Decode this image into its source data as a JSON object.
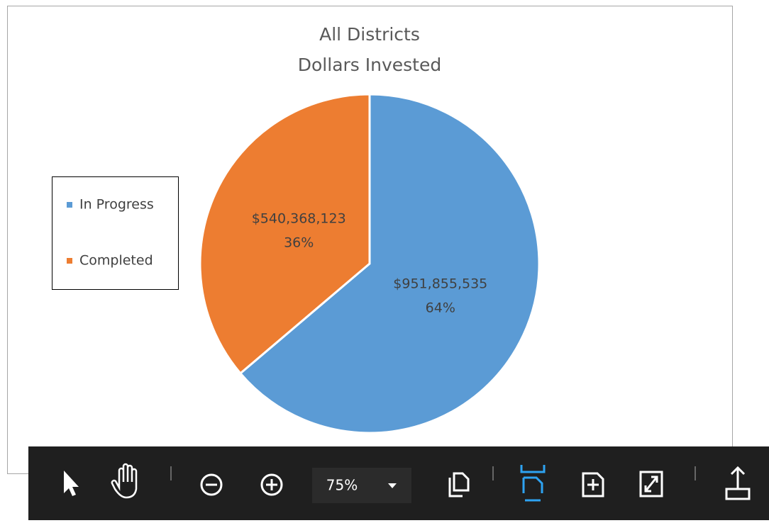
{
  "chart_data": {
    "type": "pie",
    "title": [
      "All Districts",
      "Dollars Invested"
    ],
    "categories": [
      "In Progress",
      "Completed"
    ],
    "values": [
      951855535,
      540368123
    ],
    "value_labels": [
      "$951,855,535",
      "$540,368,123"
    ],
    "percents": [
      64,
      36
    ],
    "percent_labels": [
      "64%",
      "36%"
    ],
    "colors": [
      "#5b9bd5",
      "#ed7d31"
    ],
    "legend": "left"
  },
  "toolbar": {
    "zoom": "75%"
  }
}
